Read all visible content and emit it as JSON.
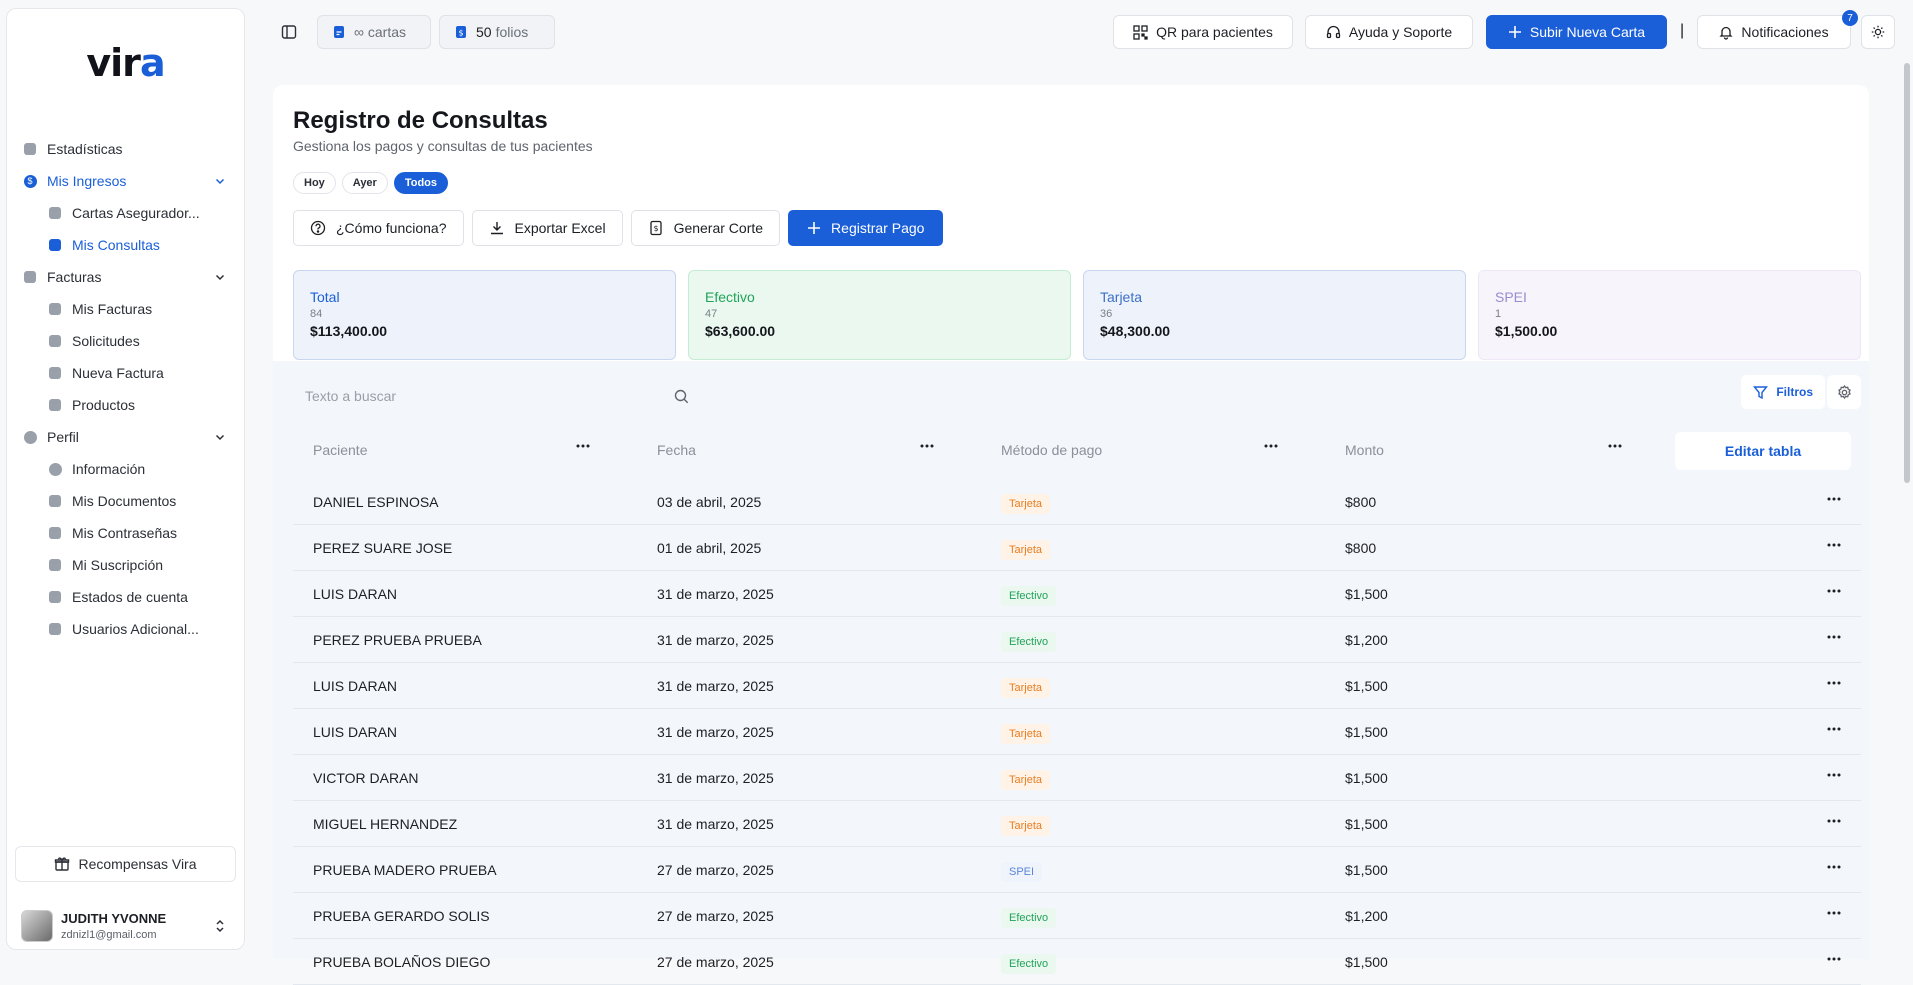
{
  "sidebar": {
    "logo": {
      "prefix": "vir",
      "accent": "a"
    },
    "nav": [
      {
        "label": "Estadísticas",
        "icon": "grid-icon"
      },
      {
        "label": "Mis Ingresos",
        "icon": "dollar-icon",
        "active": true
      },
      {
        "label": "Cartas Asegurador...",
        "icon": "document-icon",
        "sub": true
      },
      {
        "label": "Mis Consultas",
        "icon": "list-icon",
        "sub": true,
        "active": true
      },
      {
        "label": "Facturas",
        "icon": "invoice-icon"
      },
      {
        "label": "Mis Facturas",
        "icon": "invoice-icon",
        "sub": true
      },
      {
        "label": "Solicitudes",
        "icon": "request-icon",
        "sub": true
      },
      {
        "label": "Nueva Factura",
        "icon": "edit-icon",
        "sub": true
      },
      {
        "label": "Productos",
        "icon": "box-icon",
        "sub": true
      },
      {
        "label": "Perfil",
        "icon": "user-icon"
      },
      {
        "label": "Información",
        "icon": "user-icon",
        "sub": true
      },
      {
        "label": "Mis Documentos",
        "icon": "documents-icon",
        "sub": true
      },
      {
        "label": "Mis Contraseñas",
        "icon": "shield-icon",
        "sub": true
      },
      {
        "label": "Mi Suscripción",
        "icon": "diamond-icon",
        "sub": true
      },
      {
        "label": "Estados de cuenta",
        "icon": "statement-icon",
        "sub": true
      },
      {
        "label": "Usuarios Adicional...",
        "icon": "users-icon",
        "sub": true
      }
    ],
    "rewards_label": "Recompensas Vira",
    "user": {
      "name": "JUDITH YVONNE",
      "email": "zdnizl1@gmail.com"
    }
  },
  "topbar": {
    "cartas": "∞ cartas",
    "folios_count": "50",
    "folios_label": "folios",
    "qr_label": "QR para pacientes",
    "help_label": "Ayuda y Soporte",
    "upload_label": "Subir Nueva Carta",
    "separator": "|",
    "notifications_label": "Notificaciones",
    "notifications_count": "7"
  },
  "main": {
    "title": "Registro de Consultas",
    "subtitle": "Gestiona los pagos y consultas de tus pacientes",
    "chips": [
      "Hoy",
      "Ayer",
      "Todos"
    ],
    "actions": {
      "help": "¿Cómo funciona?",
      "export": "Exportar Excel",
      "cut": "Generar Corte",
      "register": "Registrar Pago"
    },
    "summary": [
      {
        "label": "Total",
        "count": "84",
        "amount": "$113,400.00"
      },
      {
        "label": "Efectivo",
        "count": "47",
        "amount": "$63,600.00"
      },
      {
        "label": "Tarjeta",
        "count": "36",
        "amount": "$48,300.00"
      },
      {
        "label": "SPEI",
        "count": "1",
        "amount": "$1,500.00"
      }
    ],
    "search_placeholder": "Texto a buscar",
    "filters_label": "Filtros",
    "columns": [
      "Paciente",
      "Fecha",
      "Método de pago",
      "Monto"
    ],
    "edit_table_label": "Editar tabla",
    "rows": [
      {
        "patient": "DANIEL ESPINOSA",
        "date": "03 de abril, 2025",
        "method": "Tarjeta",
        "amount": "$800"
      },
      {
        "patient": "PEREZ SUARE JOSE",
        "date": "01 de abril, 2025",
        "method": "Tarjeta",
        "amount": "$800"
      },
      {
        "patient": "LUIS DARAN",
        "date": "31 de marzo, 2025",
        "method": "Efectivo",
        "amount": "$1,500"
      },
      {
        "patient": "PEREZ PRUEBA PRUEBA",
        "date": "31 de marzo, 2025",
        "method": "Efectivo",
        "amount": "$1,200"
      },
      {
        "patient": "LUIS DARAN",
        "date": "31 de marzo, 2025",
        "method": "Tarjeta",
        "amount": "$1,500"
      },
      {
        "patient": "LUIS DARAN",
        "date": "31 de marzo, 2025",
        "method": "Tarjeta",
        "amount": "$1,500"
      },
      {
        "patient": "VICTOR DARAN",
        "date": "31 de marzo, 2025",
        "method": "Tarjeta",
        "amount": "$1,500"
      },
      {
        "patient": "MIGUEL HERNANDEZ",
        "date": "31 de marzo, 2025",
        "method": "Tarjeta",
        "amount": "$1,500"
      },
      {
        "patient": "PRUEBA MADERO PRUEBA",
        "date": "27 de marzo, 2025",
        "method": "SPEI",
        "amount": "$1,500"
      },
      {
        "patient": "PRUEBA GERARDO SOLIS",
        "date": "27 de marzo, 2025",
        "method": "Efectivo",
        "amount": "$1,200"
      },
      {
        "patient": "PRUEBA BOLAÑOS DIEGO",
        "date": "27 de marzo, 2025",
        "method": "Efectivo",
        "amount": "$1,500"
      }
    ]
  },
  "colors": {
    "accent": "#1a5fd8",
    "tarjeta": "#e67e22",
    "efectivo": "#22a35a",
    "spei": "#5a86d6"
  }
}
